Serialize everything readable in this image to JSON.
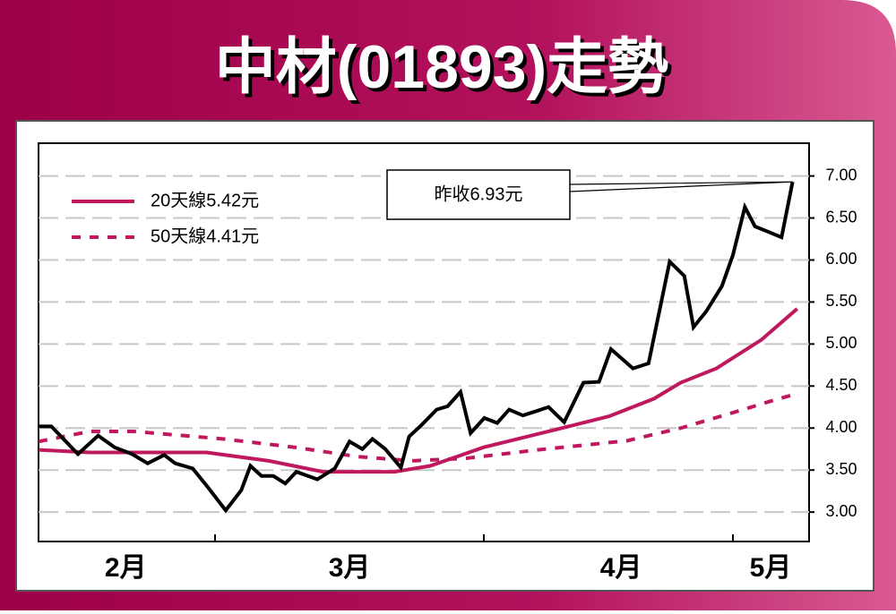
{
  "chart_data": {
    "type": "line",
    "title": "中材(01893)走勢",
    "annotation": "昨收6.93元",
    "xlim": [
      0,
      84
    ],
    "ylim": [
      2.65,
      7.39
    ],
    "yticks": [
      {
        "value": 3,
        "label": "3.00"
      },
      {
        "value": 3.5,
        "label": "3.50"
      },
      {
        "value": 4,
        "label": "4.00"
      },
      {
        "value": 4.5,
        "label": "4.50"
      },
      {
        "value": 5,
        "label": "5.00"
      },
      {
        "value": 5.5,
        "label": "5.50"
      },
      {
        "value": 6,
        "label": "6.00"
      },
      {
        "value": 6.5,
        "label": "6.50"
      },
      {
        "value": 7,
        "label": "7.00"
      }
    ],
    "xticks": [
      {
        "value": 9.5,
        "label": "2月"
      },
      {
        "value": 33.9,
        "label": "3月"
      },
      {
        "value": 63.5,
        "label": "4月"
      },
      {
        "value": 79.8,
        "label": "5月"
      }
    ],
    "grid": true,
    "legend": "upper left",
    "series": [
      {
        "color": "#000000",
        "x": [
          0,
          1.4,
          4.3,
          6.5,
          8.3,
          10.2,
          11.9,
          13.7,
          14.9,
          16.8,
          18.5,
          20.4,
          22.1,
          23.1,
          24.3,
          25.6,
          26.9,
          28.1,
          30.4,
          32.3,
          33.9,
          35.3,
          36.4,
          37.8,
          39.5,
          40.4,
          41.7,
          43.4,
          44.6,
          46,
          47.1,
          48.6,
          50,
          51.3,
          52.8,
          54.5,
          55.6,
          57.3,
          59.4,
          61.1,
          62.4,
          64.8,
          66.5,
          68.8,
          70.4,
          71.4,
          72.8,
          74.5,
          75.7,
          77,
          78.1,
          81,
          82.2
        ],
        "values": [
          4.02,
          4.02,
          3.69,
          3.91,
          3.77,
          3.69,
          3.58,
          3.68,
          3.58,
          3.52,
          3.29,
          3.02,
          3.26,
          3.55,
          3.43,
          3.43,
          3.34,
          3.48,
          3.39,
          3.52,
          3.84,
          3.75,
          3.87,
          3.75,
          3.53,
          3.9,
          4.03,
          4.22,
          4.26,
          4.43,
          3.94,
          4.12,
          4.06,
          4.22,
          4.15,
          4.21,
          4.25,
          4.07,
          4.54,
          4.55,
          4.94,
          4.71,
          4.77,
          5.98,
          5.81,
          5.2,
          5.39,
          5.69,
          6.06,
          6.63,
          6.4,
          6.27,
          6.93
        ]
      },
      {
        "name": "20天線5.42元",
        "color": "#c0185e",
        "dashed": false,
        "x": [
          0,
          5.6,
          18.3,
          25.1,
          31,
          38.8,
          42.7,
          48.5,
          56.3,
          62.2,
          67.1,
          70,
          73.9,
          78.8,
          82.7
        ],
        "values": [
          3.74,
          3.71,
          3.71,
          3.61,
          3.48,
          3.48,
          3.55,
          3.77,
          3.98,
          4.14,
          4.35,
          4.54,
          4.71,
          5.05,
          5.42
        ]
      },
      {
        "name": "50天線4.41元",
        "color": "#c0185e",
        "dashed": true,
        "x": [
          0,
          5.6,
          10.4,
          20.2,
          28,
          34.8,
          40.7,
          46.6,
          54.4,
          64.2,
          70,
          75.9,
          79.8,
          82.7
        ],
        "values": [
          3.84,
          3.96,
          3.96,
          3.87,
          3.77,
          3.66,
          3.61,
          3.64,
          3.74,
          3.85,
          4.0,
          4.19,
          4.32,
          4.41
        ]
      }
    ]
  }
}
